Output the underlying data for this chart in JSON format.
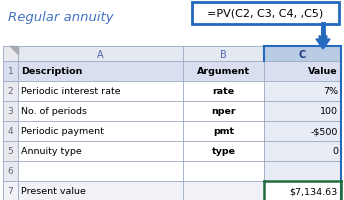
{
  "title": "Regular annuity",
  "formula": "=PV(C2, C3, C4, ,C5)",
  "header_row": [
    "Description",
    "Argument",
    "Value"
  ],
  "rows": [
    [
      "Periodic interest rate",
      "rate",
      "7%"
    ],
    [
      "No. of periods",
      "nper",
      "100"
    ],
    [
      "Periodic payment",
      "pmt",
      "-$500"
    ],
    [
      "Annuity type",
      "type",
      "0"
    ],
    [
      "",
      "",
      ""
    ],
    [
      "Present value",
      "",
      "$7,134.63"
    ]
  ],
  "header_bg": "#d9dff0",
  "col_c_header_bg": "#c8d4ec",
  "col_c_data_bg": "#e8ecf4",
  "row_bg_white": "#ffffff",
  "row_bg_light": "#f0f2f8",
  "result_border_color": "#1f6b3a",
  "formula_box_border": "#2469be",
  "formula_box_bg": "#ffffff",
  "title_color": "#4472c4",
  "arrow_color": "#2469be",
  "grid_color": "#9aaac0",
  "text_dark": "#000000",
  "fig_bg": "#ffffff",
  "col_letter_bg": "#e4e8f0",
  "col_letter_c_bg": "#b8cce4",
  "rn_bg": "#e8eaf0"
}
